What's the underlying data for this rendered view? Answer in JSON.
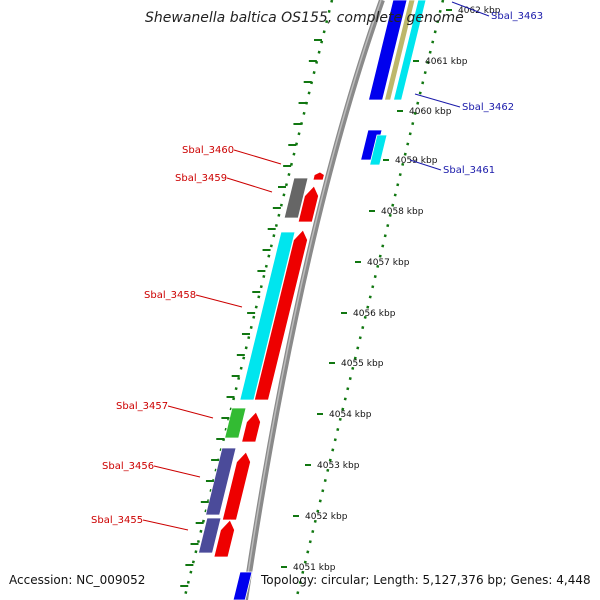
{
  "title": "Shewanella baltica OS155, complete genome",
  "footer": {
    "accession": "Accession: NC_009052",
    "summary": "Topology: circular; Length: 5,127,376 bp; Genes: 4,448"
  },
  "kbp_labels": [
    "4051 kbp",
    "4052 kbp",
    "4053 kbp",
    "4054 kbp",
    "4055 kbp",
    "4056 kbp",
    "4057 kbp",
    "4058 kbp",
    "4059 kbp",
    "4060 kbp",
    "4061 kbp",
    "4062 kbp"
  ],
  "genes": [
    {
      "id": "Sbal_3455",
      "strand": "forward"
    },
    {
      "id": "Sbal_3456",
      "strand": "forward"
    },
    {
      "id": "Sbal_3457",
      "strand": "forward"
    },
    {
      "id": "Sbal_3458",
      "strand": "forward"
    },
    {
      "id": "Sbal_3459",
      "strand": "forward"
    },
    {
      "id": "Sbal_3460",
      "strand": "forward"
    },
    {
      "id": "Sbal_3461",
      "strand": "reverse"
    },
    {
      "id": "Sbal_3462",
      "strand": "reverse"
    },
    {
      "id": "Sbal_3463",
      "strand": "reverse"
    }
  ],
  "colors": {
    "backbone": "#8a8a8a",
    "forward_gene": "#ee0000",
    "reverse_gene": "#0000ee",
    "cds_cyan": "#00e5ee",
    "cds_slate": "#4b4b9a",
    "cds_green": "#33bb33",
    "cds_gray": "#666666",
    "cds_tan": "#bdb76b",
    "dot_track": "#117711",
    "label_forward": "#cc0000",
    "label_reverse": "#1a1aaa"
  }
}
